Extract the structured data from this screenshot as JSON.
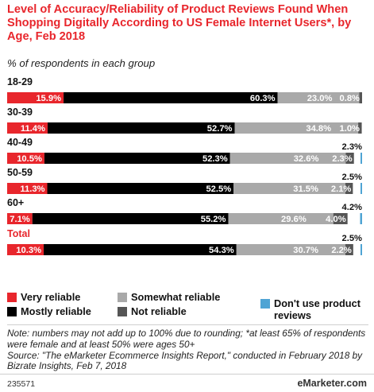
{
  "title": "Level of Accuracy/Reliability of Product Reviews Found When Shopping Digitally According to US Female Internet Users*, by Age, Feb 2018",
  "subtitle": "% of respondents in each group",
  "chart_data": {
    "type": "bar",
    "orientation": "horizontal",
    "stacked": true,
    "categories": [
      "18-29",
      "30-39",
      "40-49",
      "50-59",
      "60+",
      "Total"
    ],
    "series": [
      {
        "name": "Very reliable",
        "color": "#e8262c",
        "values": [
          15.9,
          11.4,
          10.5,
          11.3,
          7.1,
          10.3
        ]
      },
      {
        "name": "Mostly reliable",
        "color": "#000000",
        "values": [
          60.3,
          52.7,
          52.3,
          52.5,
          55.2,
          54.3
        ]
      },
      {
        "name": "Somewhat reliable",
        "color": "#a9a9a9",
        "values": [
          23.0,
          34.8,
          32.6,
          31.5,
          29.6,
          30.7
        ]
      },
      {
        "name": "Not reliable",
        "color": "#555555",
        "values": [
          0.8,
          1.0,
          2.3,
          2.1,
          4.0,
          2.2
        ]
      },
      {
        "name": "Don't use product reviews",
        "color": "#4fa4d4",
        "values": [
          null,
          null,
          2.3,
          2.5,
          4.2,
          2.5
        ]
      }
    ],
    "value_labels": [
      [
        "15.9%",
        "60.3%",
        "23.0%",
        "0.8%",
        ""
      ],
      [
        "11.4%",
        "52.7%",
        "34.8%",
        "1.0%",
        ""
      ],
      [
        "10.5%",
        "52.3%",
        "32.6%",
        "2.3%",
        "2.3%"
      ],
      [
        "11.3%",
        "52.5%",
        "31.5%",
        "2.1%",
        "2.5%"
      ],
      [
        "7.1%",
        "55.2%",
        "29.6%",
        "4.0%",
        "4.2%"
      ],
      [
        "10.3%",
        "54.3%",
        "30.7%",
        "2.2%",
        "2.5%"
      ]
    ],
    "highlight_category": "Total",
    "legend_position": "bottom",
    "grid": false
  },
  "legend": [
    {
      "label": "Very reliable",
      "color": "#e8262c"
    },
    {
      "label": "Somewhat reliable",
      "color": "#a9a9a9"
    },
    {
      "label": "Don't use product reviews",
      "color": "#4fa4d4"
    },
    {
      "label": "Mostly reliable",
      "color": "#000000"
    },
    {
      "label": "Not reliable",
      "color": "#555555"
    }
  ],
  "notes": "Note: numbers may not add up to 100% due to rounding; *at least 65% of respondents were female and at least 50% were ages 50+",
  "source": "Source: \"The eMarketer Ecommerce Insights Report,\" conducted in February 2018 by Bizrate Insights, Feb 7, 2018",
  "chart_id": "235571",
  "brand": "eMarketer.com"
}
